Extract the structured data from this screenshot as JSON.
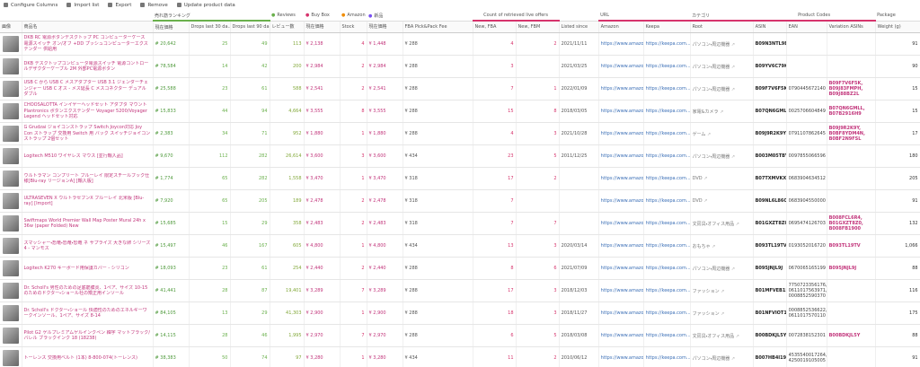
{
  "toolbar": [
    "Configure Columns",
    "Import list",
    "Export",
    "Remove",
    "Update product data"
  ],
  "table": {
    "group_headers": [
      "売れ筋ランキング",
      "Reviews",
      "Buy Box",
      "Amazon",
      "新品",
      "Count of retrieved live offers",
      "URL",
      "カテゴリ",
      "Product Codes",
      "Package"
    ],
    "headers": [
      "画像",
      "商品名",
      "現在価格",
      "Drops last 30 da...",
      "Drops last 90 da...",
      "レビュー数",
      "現在価格",
      "Stock",
      "現在価格",
      "FBA Pick&Pack Fee",
      "New, FBA",
      "New, FBM",
      "Listed since",
      "Amazon",
      "Keepa",
      "Root",
      "ASIN",
      "EAN",
      "Variation ASINs",
      "Weight (g)"
    ],
    "rows": [
      [
        "DKB RC 電源ボタンデスクトップ PC コンピューターケース 電源スイッチ オン/オフ +DD プッシュコンピューターエクステンダー 供給用",
        "# 20,642",
        "25",
        "49",
        "113",
        "¥ 2,138",
        "4",
        "¥ 1,448",
        "¥ 288",
        "4",
        "2",
        "2021/11/11",
        "https://www.amazo...",
        "https://keepa.com...",
        "パソコン・周辺機器",
        "B09N3NTL9B",
        null,
        null,
        "91"
      ],
      [
        "DKB デスクトップコンピュータ電源スイッチ 電源コントロールデザクターケーブル 2M 外部PC電源ボタン",
        "# 78,584",
        "14",
        "42",
        "200",
        "¥ 2,984",
        "2",
        "¥ 2,984",
        "¥ 288",
        "3",
        null,
        "2021/03/25",
        "https://www.amazo...",
        "https://keepa.com...",
        "パソコン・周辺機器",
        "B09YV6C79K",
        null,
        null,
        "90"
      ],
      [
        "USB C から USB C メスアダプター USB 3.1 ジェンダーチェンジャー USB C オス - メス延長 C メスコネクター デュアルダブル",
        "# 25,588",
        "23",
        "61",
        "588",
        "¥ 2,541",
        "2",
        "¥ 2,541",
        "¥ 288",
        "7",
        "1",
        "2022/01/09",
        "https://www.amazo...",
        "https://keepa.com...",
        "パソコン・周辺機器",
        "B09F7V6F5K",
        "0790445672140",
        "B09F7V6F5K, B09J83FMPH, B09J88BZ2L",
        "15"
      ],
      [
        "CHOOSALOTTA インイヤーヘッドセット アダプタ マウント Plantronics ボタンエクステンダー Voyager 5200/Voyager Legend ヘッドセット対応",
        "# 15,833",
        "44",
        "94",
        "4,664",
        "¥ 3,555",
        "8",
        "¥ 3,555",
        "¥ 288",
        "15",
        "8",
        "2018/03/05",
        "https://www.amazo...",
        "https://keepa.com...",
        "家電&カメラ",
        "B07QN6GMLL",
        "0025706604849",
        "B07QN6GMLL, B07B2916H9",
        "15"
      ],
      [
        "G Grudzai ジョイコンストラップ Switch Joycon対応 Joy Con ストラップ 交換用 Switch 用 バック スイッチジョイコンストラップ 2個セット",
        "# 2,383",
        "34",
        "71",
        "952",
        "¥ 1,880",
        "1",
        "¥ 1,880",
        "¥ 288",
        "4",
        "3",
        "2021/10/28",
        "https://www.amazo...",
        "https://keepa.com...",
        "ゲーム",
        "B09J9R2K9Y",
        "0791107862645",
        "B09J9R2K9Y, B0BF8YDM4N, B0BF2N9FSL",
        "17"
      ],
      [
        "Logitech M510 ワイヤレス マウス [並行輸入品]",
        "# 9,670",
        "112",
        "282",
        "26,614",
        "¥ 3,600",
        "3",
        "¥ 3,600",
        "¥ 434",
        "23",
        "5",
        "2011/12/25",
        "https://www.amazo...",
        "https://keepa.com...",
        "パソコン・周辺機器",
        "B003M05TBY",
        "0097855066596",
        null,
        "180"
      ],
      [
        "ウルトラマン コンプリート ブルーレイ 限定スチールブック仕様[Blu-ray リージョンA] [輸入版]",
        "# 1,774",
        "65",
        "282",
        "1,558",
        "¥ 3,470",
        "1",
        "¥ 3,470",
        "¥ 318",
        "17",
        "2",
        null,
        "https://www.amazo...",
        "https://keepa.com...",
        "DVD",
        "B07TXMVKXF",
        "0683904634512",
        null,
        "205"
      ],
      [
        "ULTRASEVEN X ウルトラセブンX ブルーレイ 北米版 [Blu-ray] [Import]",
        "# 7,920",
        "65",
        "205",
        "189",
        "¥ 2,478",
        "2",
        "¥ 2,478",
        "¥ 318",
        "7",
        null,
        null,
        "https://www.amazo...",
        "https://keepa.com...",
        "DVD",
        "B09NL6L86C",
        "0683904550000",
        null,
        "91"
      ],
      [
        "Swiftmaps World Premier Wall Map Poster Mural 24h x 36w (paper Folded) New",
        "# 15,685",
        "15",
        "29",
        "358",
        "¥ 2,483",
        "2",
        "¥ 2,483",
        "¥ 318",
        "7",
        "7",
        null,
        "https://www.amazo...",
        "https://keepa.com...",
        "文房具・オフィス用品",
        "B01GXZT8Z0",
        "0695474126703",
        "B008FCL6R4, B01GXZT8Z0, B008FB1900",
        "132"
      ],
      [
        "スマッシャー・恐竜・恐竜・恐竜 ネ サプライズ 大きな卵 シリーズ4 - マンモス",
        "# 15,497",
        "46",
        "167",
        "605",
        "¥ 4,800",
        "1",
        "¥ 4,800",
        "¥ 434",
        "13",
        "3",
        "2020/03/14",
        "https://www.amazo...",
        "https://keepa.com...",
        "おもちゃ",
        "B093TL19TV",
        "0193052016720",
        "B093TL19TV",
        "1,066"
      ],
      [
        "Logitech K270 キーボード用保護カバー - シリコン",
        "# 18,093",
        "23",
        "61",
        "254",
        "¥ 2,440",
        "2",
        "¥ 2,440",
        "¥ 288",
        "8",
        "6",
        "2021/07/09",
        "https://www.amazo...",
        "https://keepa.com...",
        "パソコン・周辺機器",
        "B095JNJL9J",
        "0670065165199",
        "B095JNJL9J",
        "88"
      ],
      [
        "Dr. Scholl's 男性のための足底筋膜炎、1ペア、サイズ 10-15 のためのドクター・ショール社の矯正用インソール",
        "# 41,441",
        "28",
        "87",
        "19,401",
        "¥ 3,289",
        "7",
        "¥ 3,289",
        "¥ 288",
        "17",
        "3",
        "2018/12/03",
        "https://www.amazo...",
        "https://keepa.com...",
        "ファッション",
        "B01MFVEB15",
        "7750723356176, 0611017563971, 0008852590370",
        null,
        "116"
      ],
      [
        "Dr. Scholl's ドクター・ショール 快適性のためのエネルギーワークインソール、1ペア、サイズ 8-14",
        "# 84,105",
        "13",
        "29",
        "41,303",
        "¥ 2,900",
        "1",
        "¥ 2,900",
        "¥ 288",
        "18",
        "3",
        "2018/11/27",
        "https://www.amazo...",
        "https://keepa.com...",
        "ファッション",
        "B01NFVIOT1",
        "0008852536622, 0611017570110",
        null,
        "175"
      ],
      [
        "Pilot G2 ゲルプレミアムゲルインクペン 細字 マットブラック/バレル ブラックインク 18 (18238)",
        "# 14,115",
        "28",
        "46",
        "1,995",
        "¥ 2,970",
        "7",
        "¥ 2,970",
        "¥ 288",
        "6",
        "5",
        "2018/03/08",
        "https://www.amazo...",
        "https://keepa.com...",
        "文房具・オフィス用品",
        "B00BDKJL5Y",
        "0072838152301",
        "B00BDKJL5Y",
        "88"
      ],
      [
        "トーレンス 交換用ベルト (1本) 8-800-074(トーレンス)",
        "# 38,383",
        "50",
        "74",
        "97",
        "¥ 3,280",
        "1",
        "¥ 3,280",
        "¥ 434",
        "11",
        "2",
        "2010/06/12",
        "https://www.amazo...",
        "https://keepa.com...",
        "パソコン・周辺機器",
        "B007HB4I19",
        "4535540017264, 4250019105005",
        null,
        "91"
      ]
    ]
  }
}
